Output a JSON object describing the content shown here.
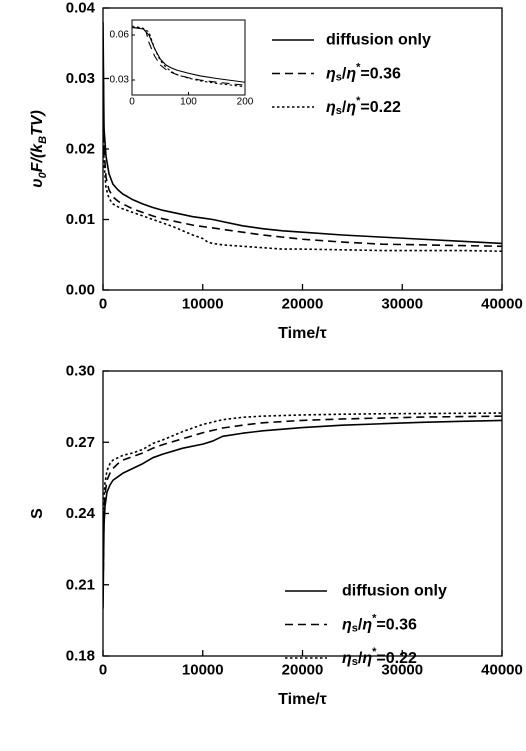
{
  "chart_data": [
    {
      "type": "line",
      "title": "",
      "xlabel": "Time/τ",
      "ylabel": "υ0F/(kBTV)",
      "xlim": [
        0,
        40000
      ],
      "ylim": [
        0,
        0.04
      ],
      "x_ticks": [
        "0",
        "10000",
        "20000",
        "30000",
        "40000"
      ],
      "y_ticks": [
        "0.00",
        "0.01",
        "0.02",
        "0.03",
        "0.04"
      ],
      "legend_position": "top-right",
      "series": [
        {
          "name": "diffusion only",
          "style": "solid",
          "x": [
            0,
            100,
            300,
            600,
            1000,
            1500,
            2000,
            3000,
            4000,
            5000,
            6000,
            7000,
            8000,
            9000,
            10000,
            11000,
            12000,
            14000,
            16000,
            18000,
            20000,
            24000,
            28000,
            32000,
            36000,
            40000
          ],
          "y": [
            0.038,
            0.023,
            0.019,
            0.0165,
            0.015,
            0.0142,
            0.0136,
            0.0128,
            0.0122,
            0.0117,
            0.0113,
            0.011,
            0.0107,
            0.0104,
            0.0102,
            0.01,
            0.0097,
            0.0091,
            0.0087,
            0.0084,
            0.0082,
            0.0078,
            0.0075,
            0.0072,
            0.0069,
            0.0066
          ]
        },
        {
          "name": "η_s/η*=0.36",
          "style": "dashed",
          "x": [
            0,
            100,
            300,
            600,
            1000,
            1500,
            2000,
            3000,
            4000,
            5000,
            6000,
            7000,
            8000,
            9000,
            10000,
            11000,
            12000,
            14000,
            16000,
            18000,
            20000,
            24000,
            28000,
            32000,
            36000,
            40000
          ],
          "y": [
            0.035,
            0.02,
            0.016,
            0.0142,
            0.0132,
            0.0126,
            0.0122,
            0.0115,
            0.011,
            0.0105,
            0.0101,
            0.0098,
            0.0095,
            0.0092,
            0.009,
            0.0088,
            0.0086,
            0.0082,
            0.0078,
            0.0075,
            0.0072,
            0.0068,
            0.0065,
            0.0064,
            0.0063,
            0.0062
          ]
        },
        {
          "name": "η_s/η*=0.22",
          "style": "dotted",
          "x": [
            0,
            100,
            300,
            600,
            1000,
            1500,
            2000,
            3000,
            4000,
            5000,
            6000,
            7000,
            8000,
            9000,
            10000,
            10500,
            11000,
            12000,
            14000,
            16000,
            18000,
            20000,
            24000,
            28000,
            32000,
            36000,
            40000
          ],
          "y": [
            0.034,
            0.018,
            0.0145,
            0.013,
            0.0122,
            0.0118,
            0.0115,
            0.011,
            0.0105,
            0.01,
            0.0095,
            0.009,
            0.0084,
            0.0078,
            0.0073,
            0.0068,
            0.0066,
            0.0064,
            0.0062,
            0.006,
            0.0058,
            0.0058,
            0.0057,
            0.0056,
            0.0056,
            0.0056,
            0.0055
          ]
        }
      ],
      "inset": {
        "type": "line",
        "xlim": [
          0,
          200
        ],
        "ylim": [
          0.02,
          0.07
        ],
        "x_ticks": [
          "0",
          "100",
          "200"
        ],
        "y_ticks": [
          "0.03",
          "0.06"
        ],
        "series": [
          {
            "name": "diffusion only",
            "style": "solid",
            "x": [
              0,
              20,
              30,
              40,
              50,
              60,
              70,
              80,
              100,
              120,
              150,
              200
            ],
            "y": [
              0.065,
              0.064,
              0.06,
              0.051,
              0.044,
              0.04,
              0.038,
              0.0365,
              0.0345,
              0.0328,
              0.031,
              0.0285
            ]
          },
          {
            "name": "η_s/η*=0.36",
            "style": "dashed",
            "x": [
              0,
              20,
              25,
              30,
              40,
              50,
              60,
              70,
              80,
              100,
              120,
              150,
              200
            ],
            "y": [
              0.065,
              0.0645,
              0.062,
              0.055,
              0.046,
              0.04,
              0.037,
              0.035,
              0.0335,
              0.0315,
              0.03,
              0.0285,
              0.0265
            ]
          },
          {
            "name": "η_s/η*=0.22",
            "style": "dotted",
            "x": [
              0,
              20,
              30,
              40,
              50,
              60,
              70,
              80,
              100,
              120,
              150,
              200
            ],
            "y": [
              0.066,
              0.0645,
              0.062,
              0.051,
              0.043,
              0.0385,
              0.0355,
              0.0335,
              0.0312,
              0.0295,
              0.0277,
              0.0255
            ]
          }
        ]
      }
    },
    {
      "type": "line",
      "title": "",
      "xlabel": "Time/τ",
      "ylabel": "S",
      "xlim": [
        0,
        40000
      ],
      "ylim": [
        0.18,
        0.3
      ],
      "x_ticks": [
        "0",
        "10000",
        "20000",
        "30000",
        "40000"
      ],
      "y_ticks": [
        "0.18",
        "0.21",
        "0.24",
        "0.27",
        "0.30"
      ],
      "legend_position": "bottom-right",
      "series": [
        {
          "name": "diffusion only",
          "style": "solid",
          "x": [
            0,
            100,
            200,
            400,
            700,
            1000,
            1500,
            2000,
            3000,
            4000,
            5000,
            6000,
            8000,
            10000,
            11000,
            12000,
            14000,
            16000,
            20000,
            24000,
            28000,
            32000,
            36000,
            40000
          ],
          "y": [
            0.2,
            0.235,
            0.243,
            0.249,
            0.252,
            0.254,
            0.2555,
            0.257,
            0.259,
            0.261,
            0.2635,
            0.265,
            0.2675,
            0.2692,
            0.2705,
            0.2725,
            0.2738,
            0.2748,
            0.2762,
            0.2772,
            0.2778,
            0.2784,
            0.2788,
            0.2792
          ]
        },
        {
          "name": "η_s/η*=0.36",
          "style": "dashed",
          "x": [
            0,
            100,
            200,
            400,
            700,
            1000,
            1500,
            2000,
            3000,
            4000,
            5000,
            6000,
            8000,
            10000,
            12000,
            14000,
            16000,
            20000,
            24000,
            28000,
            32000,
            36000,
            40000
          ],
          "y": [
            0.205,
            0.24,
            0.248,
            0.254,
            0.257,
            0.259,
            0.261,
            0.2625,
            0.264,
            0.2655,
            0.2675,
            0.269,
            0.2715,
            0.274,
            0.276,
            0.2772,
            0.2782,
            0.2792,
            0.2798,
            0.2802,
            0.2806,
            0.2808,
            0.281
          ]
        },
        {
          "name": "η_s/η*=0.22",
          "style": "dotted",
          "x": [
            0,
            100,
            200,
            400,
            700,
            1000,
            1500,
            2000,
            3000,
            4000,
            5000,
            6000,
            8000,
            10000,
            12000,
            14000,
            16000,
            20000,
            24000,
            28000,
            32000,
            36000,
            40000
          ],
          "y": [
            0.21,
            0.246,
            0.253,
            0.258,
            0.261,
            0.2625,
            0.2635,
            0.2645,
            0.2655,
            0.267,
            0.2695,
            0.271,
            0.2745,
            0.2775,
            0.2795,
            0.2805,
            0.281,
            0.2815,
            0.2818,
            0.282,
            0.2821,
            0.2822,
            0.2823
          ]
        }
      ]
    }
  ]
}
